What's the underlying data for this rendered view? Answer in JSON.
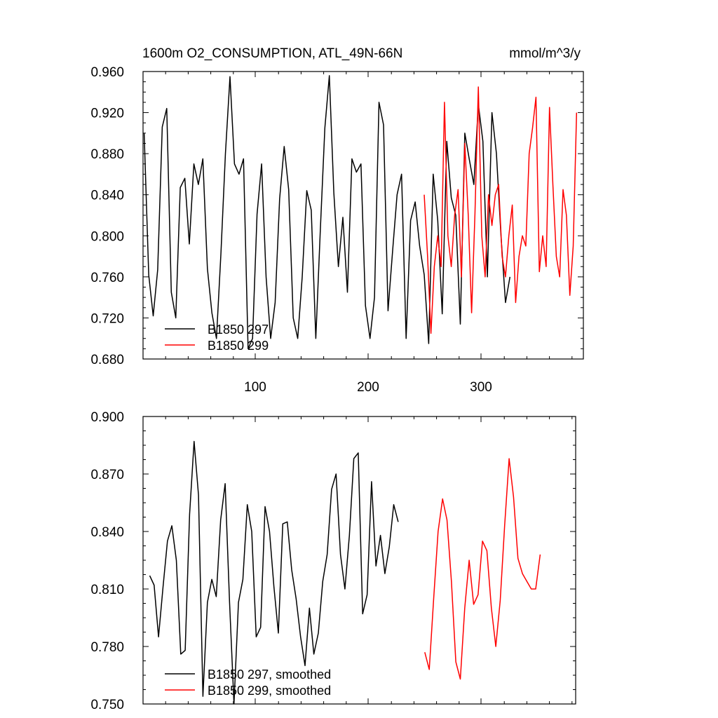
{
  "chart_data": [
    {
      "type": "line",
      "title": "1600m O2_CONSUMPTION, ATL_49N-66N",
      "units": "mmol/m^3/y",
      "xlim": [
        0,
        390
      ],
      "ylim": [
        0.68,
        0.96
      ],
      "y_ticks": [
        "0.680",
        "0.720",
        "0.760",
        "0.800",
        "0.840",
        "0.880",
        "0.920",
        "0.960"
      ],
      "x_ticks": [
        "100",
        "200",
        "300"
      ],
      "legend_position": "bottom-left",
      "series": [
        {
          "name": "B1850 297",
          "color": "#000000",
          "x_start": 1,
          "x_step": 4,
          "values": [
            0.9,
            0.762,
            0.722,
            0.767,
            0.906,
            0.924,
            0.745,
            0.72,
            0.847,
            0.856,
            0.792,
            0.87,
            0.85,
            0.875,
            0.768,
            0.725,
            0.7,
            0.783,
            0.88,
            0.955,
            0.87,
            0.86,
            0.875,
            0.69,
            0.7,
            0.821,
            0.87,
            0.76,
            0.7,
            0.735,
            0.836,
            0.887,
            0.845,
            0.72,
            0.7,
            0.76,
            0.844,
            0.825,
            0.7,
            0.805,
            0.905,
            0.956,
            0.842,
            0.77,
            0.818,
            0.745,
            0.875,
            0.862,
            0.87,
            0.732,
            0.7,
            0.74,
            0.93,
            0.908,
            0.727,
            0.785,
            0.84,
            0.86,
            0.7,
            0.815,
            0.833,
            0.79,
            0.762,
            0.695,
            0.86,
            0.815,
            0.724,
            0.892,
            0.837,
            0.82,
            0.714,
            0.9,
            0.874,
            0.85,
            0.928,
            0.892,
            0.76,
            0.92,
            0.88,
            0.8,
            0.735,
            0.76
          ]
        },
        {
          "name": "B1850 299",
          "color": "#ff0000",
          "x_start": 249,
          "x_step": 3,
          "values": [
            0.84,
            0.78,
            0.705,
            0.77,
            0.8,
            0.77,
            0.93,
            0.8,
            0.77,
            0.82,
            0.845,
            0.76,
            0.89,
            0.82,
            0.725,
            0.822,
            0.945,
            0.8,
            0.76,
            0.84,
            0.81,
            0.84,
            0.85,
            0.78,
            0.76,
            0.8,
            0.83,
            0.735,
            0.78,
            0.8,
            0.79,
            0.88,
            0.905,
            0.935,
            0.765,
            0.8,
            0.77,
            0.925,
            0.85,
            0.78,
            0.76,
            0.845,
            0.82,
            0.742,
            0.79,
            0.92
          ]
        }
      ]
    },
    {
      "type": "line",
      "xlim": [
        0,
        390
      ],
      "ylim": [
        0.75,
        0.9
      ],
      "y_ticks": [
        "0.750",
        "0.780",
        "0.810",
        "0.840",
        "0.870",
        "0.900"
      ],
      "legend_position": "bottom-left",
      "series": [
        {
          "name": "B1850 297, smoothed",
          "color": "#000000",
          "x_start": 6,
          "x_step": 4,
          "values": [
            0.817,
            0.812,
            0.785,
            0.811,
            0.835,
            0.843,
            0.825,
            0.776,
            0.778,
            0.849,
            0.887,
            0.859,
            0.754,
            0.803,
            0.815,
            0.806,
            0.846,
            0.865,
            0.803,
            0.75,
            0.803,
            0.815,
            0.854,
            0.84,
            0.785,
            0.79,
            0.853,
            0.84,
            0.811,
            0.787,
            0.844,
            0.845,
            0.82,
            0.805,
            0.785,
            0.77,
            0.8,
            0.776,
            0.787,
            0.814,
            0.828,
            0.862,
            0.87,
            0.828,
            0.81,
            0.838,
            0.878,
            0.881,
            0.797,
            0.807,
            0.866,
            0.822,
            0.838,
            0.818,
            0.832,
            0.854,
            0.845
          ]
        },
        {
          "name": "B1850 299, smoothed",
          "color": "#ff0000",
          "x_start": 254,
          "x_step": 4,
          "values": [
            0.777,
            0.768,
            0.805,
            0.84,
            0.857,
            0.846,
            0.814,
            0.772,
            0.763,
            0.8,
            0.825,
            0.802,
            0.807,
            0.835,
            0.83,
            0.8,
            0.78,
            0.804,
            0.843,
            0.878,
            0.858,
            0.826,
            0.818,
            0.814,
            0.81,
            0.81,
            0.828
          ]
        }
      ]
    }
  ]
}
